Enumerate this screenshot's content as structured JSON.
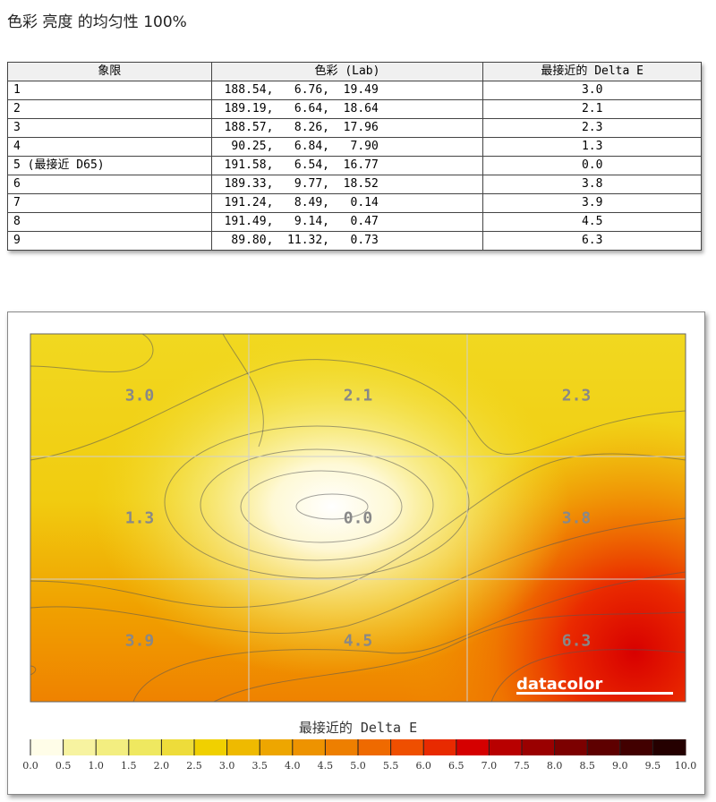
{
  "title": "色彩 亮度 的均匀性 100%",
  "table": {
    "headers": [
      "象限",
      "色彩 (Lab)",
      "最接近的 Delta E"
    ],
    "rows": [
      {
        "quadrant": "1",
        "lab": "188.54,   6.76,  19.49",
        "delta_e": "3.0"
      },
      {
        "quadrant": "2",
        "lab": "189.19,   6.64,  18.64",
        "delta_e": "2.1"
      },
      {
        "quadrant": "3",
        "lab": "188.57,   8.26,  17.96",
        "delta_e": "2.3"
      },
      {
        "quadrant": "4",
        "lab": " 90.25,   6.84,   7.90",
        "delta_e": "1.3"
      },
      {
        "quadrant": "5 (最接近 D65)",
        "lab": "191.58,   6.54,  16.77",
        "delta_e": "0.0"
      },
      {
        "quadrant": "6",
        "lab": "189.33,   9.77,  18.52",
        "delta_e": "3.8"
      },
      {
        "quadrant": "7",
        "lab": "191.24,   8.49,   0.14",
        "delta_e": "3.9"
      },
      {
        "quadrant": "8",
        "lab": "191.49,   9.14,   0.47",
        "delta_e": "4.5"
      },
      {
        "quadrant": "9",
        "lab": " 89.80,  11.32,   0.73",
        "delta_e": "6.3"
      }
    ]
  },
  "chart_data": {
    "type": "heatmap",
    "rows": 3,
    "cols": 3,
    "values": [
      [
        3.0,
        2.1,
        2.3
      ],
      [
        1.3,
        0.0,
        3.8
      ],
      [
        3.9,
        4.5,
        6.3
      ]
    ],
    "labels": [
      "3.0",
      "2.1",
      "2.3",
      "1.3",
      "0.0",
      "3.8",
      "3.9",
      "4.5",
      "6.3"
    ],
    "colorbar_title": "最接近的 Delta E",
    "colorbar_ticks": [
      "0.0",
      "0.5",
      "1.0",
      "1.5",
      "2.0",
      "2.5",
      "3.0",
      "3.5",
      "4.0",
      "4.5",
      "5.0",
      "5.5",
      "6.0",
      "6.5",
      "7.0",
      "7.5",
      "8.0",
      "8.5",
      "9.0",
      "9.5",
      "10.0"
    ],
    "colorbar_range": [
      0,
      10
    ],
    "colorbar_colors": [
      "#fffde8",
      "#f7f3a0",
      "#f3ee80",
      "#efe860",
      "#eedc3a",
      "#f0d000",
      "#efba00",
      "#eea600",
      "#ee9300",
      "#ee7f00",
      "#ef6a00",
      "#ef4f00",
      "#e82a00",
      "#d50000",
      "#b80000",
      "#9a0000",
      "#7c0000",
      "#5e0000",
      "#420000",
      "#250000"
    ],
    "watermark": "datacolor"
  }
}
